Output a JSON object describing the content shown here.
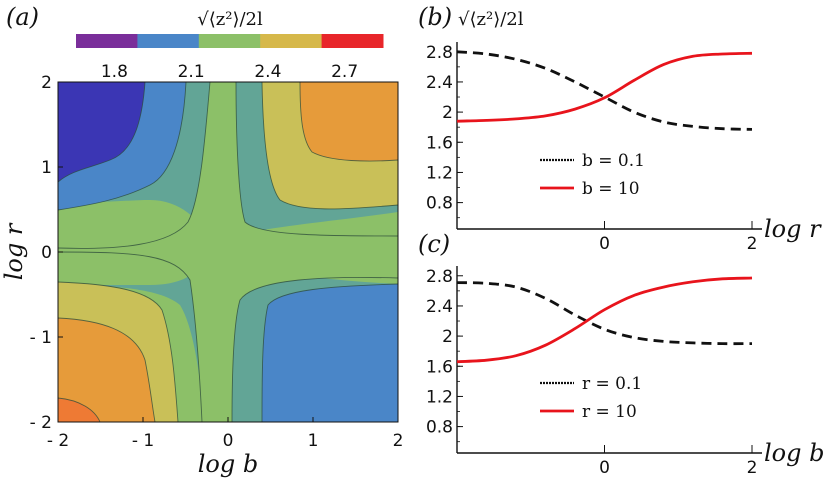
{
  "figure": {
    "panel_a_label": "(a)",
    "panel_b_label": "(b)",
    "panel_c_label": "(c)",
    "colorbar_title": "√⟨z²⟩/2l",
    "panel_b_ytitle": "√⟨z²⟩/2l"
  },
  "chart_data": [
    {
      "type": "heatmap",
      "panel": "(a)",
      "xlabel": "log b",
      "ylabel": "log r",
      "xlim": [
        -2,
        2
      ],
      "ylim": [
        -2,
        2
      ],
      "xticks": [
        "- 2",
        "- 1",
        "0",
        "1",
        "2"
      ],
      "yticks": [
        "- 2",
        "- 1",
        "0",
        "1",
        "2"
      ],
      "colorbar": {
        "title": "√⟨z²⟩/2l",
        "tick_labels": [
          "1.8",
          "2.1",
          "2.4",
          "2.7"
        ],
        "levels": [
          1.65,
          1.8,
          1.95,
          2.1,
          2.25,
          2.4,
          2.55,
          2.7,
          2.85
        ],
        "colors": [
          "#7a2e9a",
          "#4a86c8",
          "#8cc068",
          "#d6b84a",
          "#e8262a"
        ]
      },
      "region_colors": [
        "#3b36b4",
        "#4a86c8",
        "#62a596",
        "#8cc068",
        "#c9c058",
        "#e69b3a",
        "#ee7a34"
      ]
    },
    {
      "type": "line",
      "panel": "(b)",
      "ytitle": "√⟨z²⟩/2l",
      "xlabel": "log r",
      "xlim": [
        -2,
        2
      ],
      "ylim": [
        0.45,
        2.85
      ],
      "xticks": [
        "0",
        "2"
      ],
      "yticks": [
        "2.8",
        "2.4",
        "2",
        "1.6",
        "1.2",
        "0.8"
      ],
      "x": [
        -2.0,
        -1.6,
        -1.2,
        -0.8,
        -0.4,
        0.0,
        0.4,
        0.8,
        1.2,
        1.6,
        2.0
      ],
      "series": [
        {
          "name": "b  = 0.1",
          "style": "dashed",
          "color": "#111111",
          "values": [
            2.8,
            2.77,
            2.7,
            2.58,
            2.4,
            2.2,
            2.0,
            1.87,
            1.81,
            1.78,
            1.77
          ]
        },
        {
          "name": "b  = 10",
          "style": "solid",
          "color": "#e8141c",
          "values": [
            1.88,
            1.89,
            1.91,
            1.95,
            2.04,
            2.19,
            2.42,
            2.63,
            2.74,
            2.77,
            2.78
          ]
        }
      ]
    },
    {
      "type": "line",
      "panel": "(c)",
      "xlabel": "log b",
      "xlim": [
        -2,
        2
      ],
      "ylim": [
        0.45,
        2.85
      ],
      "xticks": [
        "0",
        "2"
      ],
      "yticks": [
        "2.8",
        "2.4",
        "2",
        "1.6",
        "1.2",
        "0.8"
      ],
      "x": [
        -2.0,
        -1.6,
        -1.2,
        -0.8,
        -0.4,
        0.0,
        0.4,
        0.8,
        1.2,
        1.6,
        2.0
      ],
      "series": [
        {
          "name": "r  = 0.1",
          "style": "dashed",
          "color": "#111111",
          "values": [
            2.71,
            2.7,
            2.65,
            2.5,
            2.28,
            2.09,
            1.98,
            1.93,
            1.91,
            1.9,
            1.9
          ]
        },
        {
          "name": "r  = 10",
          "style": "solid",
          "color": "#e8141c",
          "values": [
            1.66,
            1.68,
            1.74,
            1.88,
            2.1,
            2.35,
            2.54,
            2.65,
            2.72,
            2.76,
            2.77
          ]
        }
      ]
    }
  ]
}
